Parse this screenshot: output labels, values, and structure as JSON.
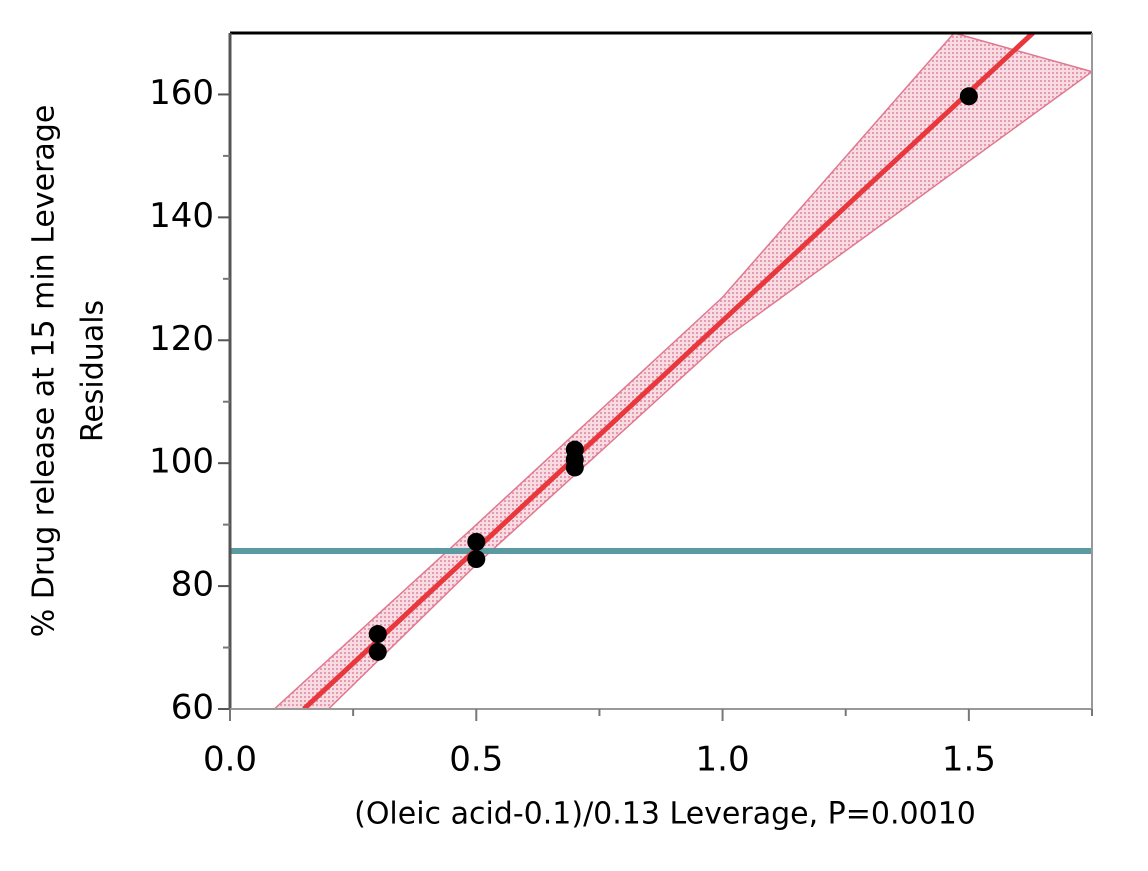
{
  "chart_data": {
    "type": "scatter",
    "xlabel": "(Oleic acid-0.1)/0.13 Leverage, P=0.0010",
    "ylabel": [
      "% Drug release at 15 min Leverage",
      "Residuals"
    ],
    "x": [
      0.3,
      0.3,
      0.5,
      0.5,
      0.7,
      0.7,
      0.7,
      1.5
    ],
    "values": [
      72.2,
      69.3,
      87.2,
      84.4,
      102.2,
      100.6,
      99.3,
      159.7
    ],
    "color": "#000000",
    "fit": {
      "x": [
        0.15,
        1.63
      ],
      "y": [
        60,
        170
      ],
      "color": "#e8383d"
    },
    "band": {
      "upper": {
        "x": [
          0.09,
          0.5,
          1.0,
          1.47
        ],
        "y": [
          60,
          90,
          127,
          170
        ]
      },
      "lower": {
        "x": [
          0.2,
          0.5,
          1.0,
          1.75
        ],
        "y": [
          60,
          83.5,
          120,
          163.7
        ]
      },
      "color": "#e07890"
    },
    "mean_line": {
      "y": 85.7,
      "color": "#5b9aa0"
    },
    "xlim": [
      0,
      1.75
    ],
    "ylim": [
      60,
      170
    ],
    "xticks": [
      {
        "value": 0,
        "label": "0.0"
      },
      0.5,
      {
        "value": 1,
        "label": "1.0"
      },
      1.5
    ],
    "xminorticks": [
      0.25,
      0.75,
      1.25,
      1.75
    ],
    "yticks": [
      60,
      80,
      100,
      120,
      140,
      160
    ],
    "yminorticks": [
      70,
      90,
      110,
      130,
      150
    ]
  }
}
